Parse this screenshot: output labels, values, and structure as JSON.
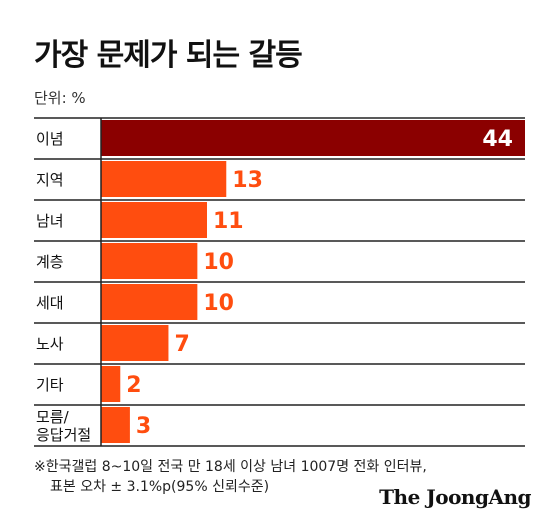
{
  "title": "가장 문제가 되는 갈등",
  "unit": "단위: %",
  "colors": {
    "top_bar": "#8b0000",
    "bar": "#ff4d0f",
    "value_label": "#ff4d0f",
    "top_value_label": "#ffffff",
    "row_line": "#222222"
  },
  "chart_data": {
    "type": "bar",
    "orientation": "horizontal",
    "categories": [
      [
        "이념"
      ],
      [
        "지역"
      ],
      [
        "남녀"
      ],
      [
        "계층"
      ],
      [
        "세대"
      ],
      [
        "노사"
      ],
      [
        "기타"
      ],
      [
        "모름/",
        "응답거절"
      ]
    ],
    "values": [
      44,
      13,
      11,
      10,
      10,
      7,
      2,
      3
    ],
    "ylabel": "단위: %",
    "xlim": [
      0,
      44
    ],
    "grid": false,
    "legend": "none"
  },
  "footnote": {
    "line1": "※한국갤럽 8~10일 전국 만 18세 이상 남녀 1007명 전화 인터뷰,",
    "line2": "표본 오차 ± 3.1%p(95% 신뢰수준)"
  },
  "brand": "The JoongAng"
}
